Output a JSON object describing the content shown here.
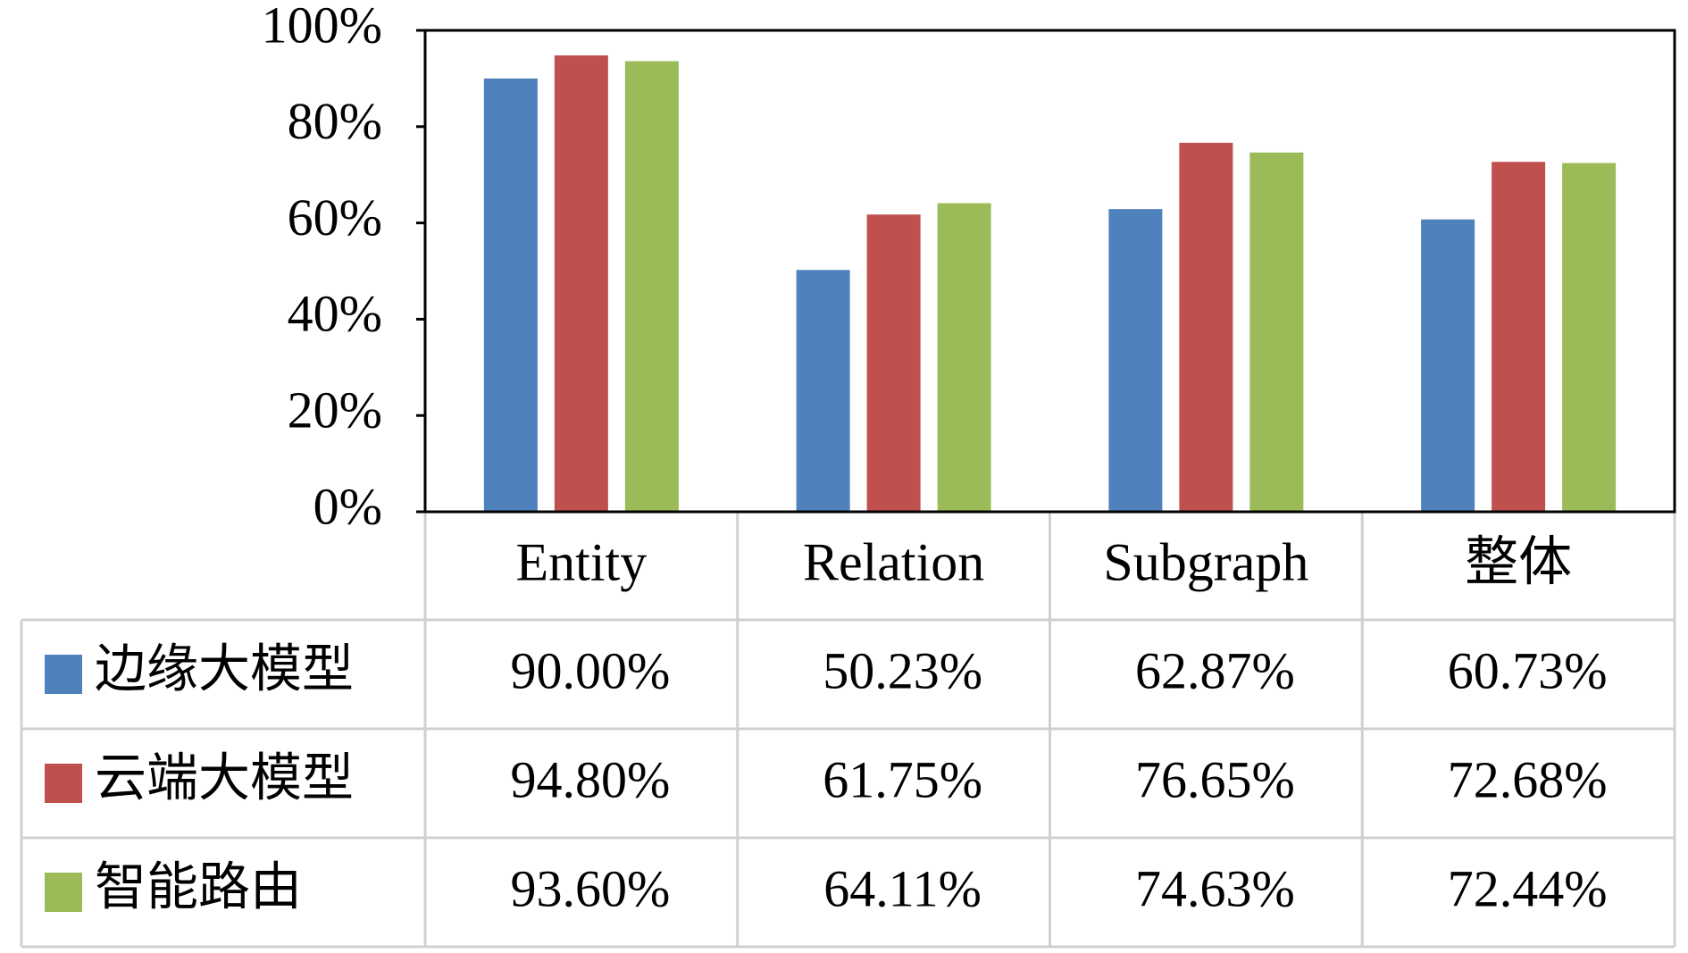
{
  "chart_data": {
    "type": "bar",
    "categories": [
      "Entity",
      "Relation",
      "Subgraph",
      "整体"
    ],
    "series": [
      {
        "name": "边缘大模型",
        "color": "#4f81bd",
        "values": [
          90.0,
          50.23,
          62.87,
          60.73
        ],
        "value_labels": [
          "90.00%",
          "50.23%",
          "62.87%",
          "60.73%"
        ]
      },
      {
        "name": "云端大模型",
        "color": "#c0504d",
        "values": [
          94.8,
          61.75,
          76.65,
          72.68
        ],
        "value_labels": [
          "94.80%",
          "61.75%",
          "76.65%",
          "72.68%"
        ]
      },
      {
        "name": "智能路由",
        "color": "#9bbb59",
        "values": [
          93.6,
          64.11,
          74.63,
          72.44
        ],
        "value_labels": [
          "93.60%",
          "64.11%",
          "74.63%",
          "72.44%"
        ]
      }
    ],
    "ylim": [
      0,
      100
    ],
    "yticks": [
      {
        "value": 0,
        "label": "0%"
      },
      {
        "value": 20,
        "label": "20%"
      },
      {
        "value": 40,
        "label": "40%"
      },
      {
        "value": 60,
        "label": "60%"
      },
      {
        "value": 80,
        "label": "80%"
      },
      {
        "value": 100,
        "label": "100%"
      }
    ],
    "grid": false
  }
}
